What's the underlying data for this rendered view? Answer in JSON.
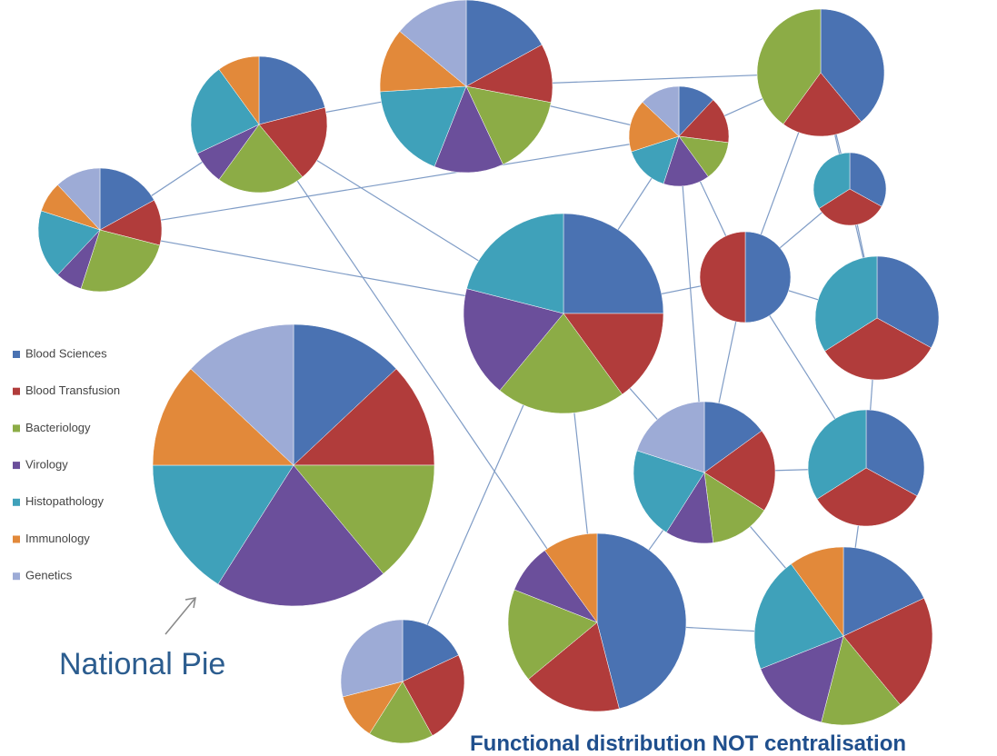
{
  "legend": [
    {
      "name": "Blood Sciences",
      "color": "#4a72b2"
    },
    {
      "name": "Blood Transfusion",
      "color": "#b13c3b"
    },
    {
      "name": "Bacteriology",
      "color": "#8cac46"
    },
    {
      "name": "Virology",
      "color": "#6b4f9b"
    },
    {
      "name": "Histopathology",
      "color": "#3fa1ba"
    },
    {
      "name": "Immunology",
      "color": "#e2893a"
    },
    {
      "name": "Genetics",
      "color": "#9dabd6"
    }
  ],
  "annotation": "National Pie",
  "caption": "Functional distribution NOT centralisation",
  "pies": [
    {
      "values": [
        13,
        12,
        14,
        20,
        16,
        12,
        13
      ]
    },
    {
      "values": [
        17,
        12,
        26,
        7,
        18,
        8,
        12
      ]
    },
    {
      "values": [
        21,
        18,
        21,
        8,
        22,
        10,
        0
      ]
    },
    {
      "values": [
        17,
        11,
        15,
        13,
        18,
        12,
        14
      ]
    },
    {
      "values": [
        12,
        15,
        13,
        15,
        15,
        17,
        13
      ]
    },
    {
      "values": [
        39,
        21,
        40,
        0,
        0,
        0,
        0
      ]
    },
    {
      "values": [
        33,
        33,
        0,
        0,
        34,
        0,
        0
      ]
    },
    {
      "values": [
        50,
        50,
        0,
        0,
        0,
        0,
        0
      ]
    },
    {
      "values": [
        25,
        15,
        21,
        18,
        21,
        0,
        0
      ]
    },
    {
      "values": [
        33,
        33,
        0,
        0,
        34,
        0,
        0
      ]
    },
    {
      "values": [
        15,
        19,
        14,
        11,
        21,
        0,
        20
      ]
    },
    {
      "values": [
        33,
        33,
        0,
        0,
        34,
        0,
        0
      ]
    },
    {
      "values": [
        46,
        18,
        17,
        9,
        0,
        10,
        0
      ]
    },
    {
      "values": [
        18,
        21,
        15,
        15,
        21,
        10,
        0
      ]
    },
    {
      "values": [
        18,
        24,
        17,
        0,
        0,
        12,
        29
      ]
    }
  ]
}
